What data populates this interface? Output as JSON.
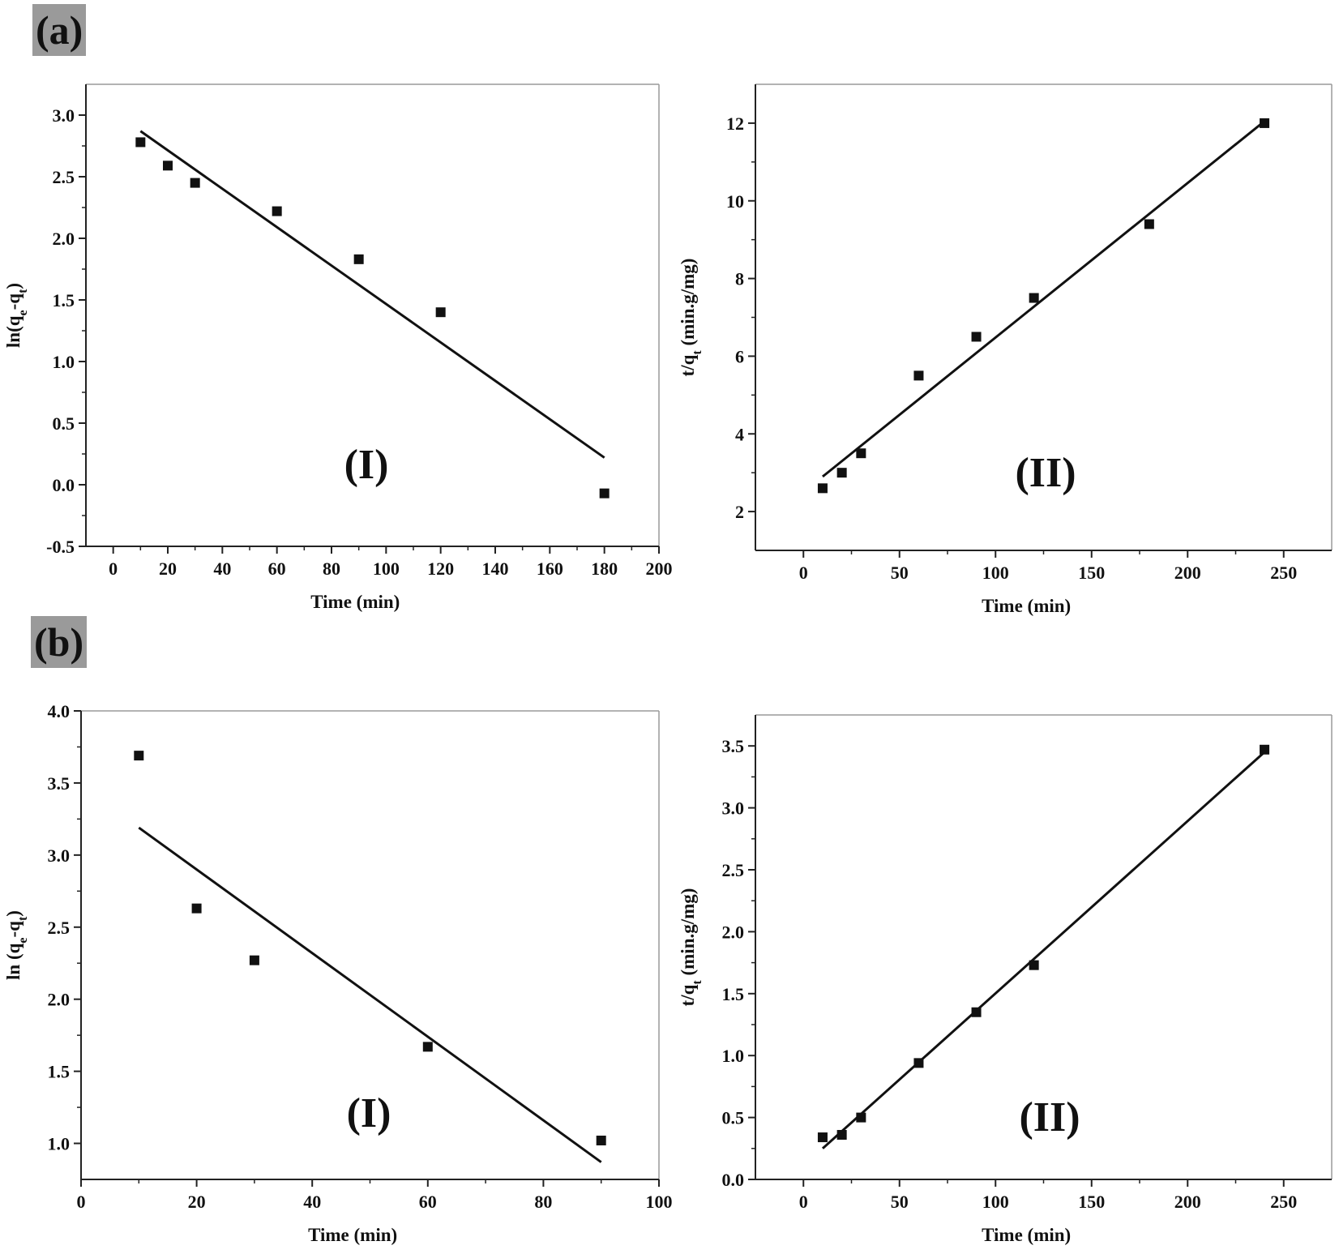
{
  "panel_labels": {
    "a": "(a)",
    "b": "(b)"
  },
  "chart_data": [
    {
      "id": "a1",
      "type": "scatter",
      "title": "",
      "annotation": "(I)",
      "xlabel": "Time (min)",
      "ylabel_parts": [
        "ln(q",
        "e",
        "-q",
        "t",
        ")"
      ],
      "xlim": [
        -10,
        200
      ],
      "ylim": [
        -0.5,
        3.25
      ],
      "xticks": [
        0,
        20,
        40,
        60,
        80,
        100,
        120,
        140,
        160,
        180,
        200
      ],
      "xtick_labels": [
        "0",
        "20",
        "40",
        "60",
        "80",
        "100",
        "120",
        "140",
        "160",
        "180",
        "200"
      ],
      "yticks": [
        -0.5,
        0.0,
        0.5,
        1.0,
        1.5,
        2.0,
        2.5,
        3.0
      ],
      "ytick_labels": [
        "-0.5",
        "0.0",
        "0.5",
        "1.0",
        "1.5",
        "2.0",
        "2.5",
        "3.0"
      ],
      "points": {
        "x": [
          10,
          20,
          30,
          60,
          90,
          120,
          180
        ],
        "y": [
          2.78,
          2.59,
          2.45,
          2.22,
          1.83,
          1.4,
          -0.07
        ]
      },
      "fit_line": {
        "x": [
          10,
          180
        ],
        "y": [
          2.87,
          0.22
        ]
      },
      "grid": false,
      "legend": "none"
    },
    {
      "id": "a2",
      "type": "scatter",
      "title": "",
      "annotation": "(II)",
      "xlabel": "Time (min)",
      "ylabel_parts": [
        "t/q",
        "t",
        " (min.g/mg)"
      ],
      "xlim": [
        -25,
        275
      ],
      "ylim": [
        1,
        13
      ],
      "xticks": [
        0,
        50,
        100,
        150,
        200,
        250
      ],
      "xtick_labels": [
        "0",
        "50",
        "100",
        "150",
        "200",
        "250"
      ],
      "yticks": [
        2,
        4,
        6,
        8,
        10,
        12
      ],
      "ytick_labels": [
        "2",
        "4",
        "6",
        "8",
        "10",
        "12"
      ],
      "points": {
        "x": [
          10,
          20,
          30,
          60,
          90,
          120,
          180,
          240
        ],
        "y": [
          2.6,
          3.0,
          3.5,
          5.5,
          6.5,
          7.5,
          9.4,
          12.0
        ]
      },
      "fit_line": {
        "x": [
          10,
          240
        ],
        "y": [
          2.9,
          12.05
        ]
      },
      "grid": false,
      "legend": "none"
    },
    {
      "id": "b1",
      "type": "scatter",
      "title": "",
      "annotation": "(I)",
      "xlabel": "Time (min)",
      "ylabel_parts": [
        "ln (q",
        "e",
        "-q",
        "t",
        ")"
      ],
      "xlim": [
        0,
        100
      ],
      "ylim": [
        0.75,
        4.0
      ],
      "xticks": [
        0,
        20,
        40,
        60,
        80,
        100
      ],
      "xtick_labels": [
        "0",
        "20",
        "40",
        "60",
        "80",
        "100"
      ],
      "yticks": [
        1.0,
        1.5,
        2.0,
        2.5,
        3.0,
        3.5,
        4.0
      ],
      "ytick_labels": [
        "1.0",
        "1.5",
        "2.0",
        "2.5",
        "3.0",
        "3.5",
        "4.0"
      ],
      "points": {
        "x": [
          10,
          20,
          30,
          60,
          90
        ],
        "y": [
          3.69,
          2.63,
          2.27,
          1.67,
          1.02
        ]
      },
      "fit_line": {
        "x": [
          10,
          90
        ],
        "y": [
          3.19,
          0.87
        ]
      },
      "grid": false,
      "legend": "none"
    },
    {
      "id": "b2",
      "type": "scatter",
      "title": "",
      "annotation": "(II)",
      "xlabel": "Time (min)",
      "ylabel_parts": [
        "t/q",
        "t",
        " (min.g/mg)"
      ],
      "xlim": [
        -25,
        275
      ],
      "ylim": [
        0,
        3.75
      ],
      "xticks": [
        0,
        50,
        100,
        150,
        200,
        250
      ],
      "xtick_labels": [
        "0",
        "50",
        "100",
        "150",
        "200",
        "250"
      ],
      "yticks": [
        0.0,
        0.5,
        1.0,
        1.5,
        2.0,
        2.5,
        3.0,
        3.5
      ],
      "ytick_labels": [
        "0.0",
        "0.5",
        "1.0",
        "1.5",
        "2.0",
        "2.5",
        "3.0",
        "3.5"
      ],
      "points": {
        "x": [
          10,
          20,
          30,
          60,
          90,
          120,
          240
        ],
        "y": [
          0.34,
          0.36,
          0.5,
          0.94,
          1.35,
          1.73,
          3.47
        ]
      },
      "fit_line": {
        "x": [
          10,
          240
        ],
        "y": [
          0.25,
          3.45
        ]
      },
      "grid": false,
      "legend": "none"
    }
  ]
}
